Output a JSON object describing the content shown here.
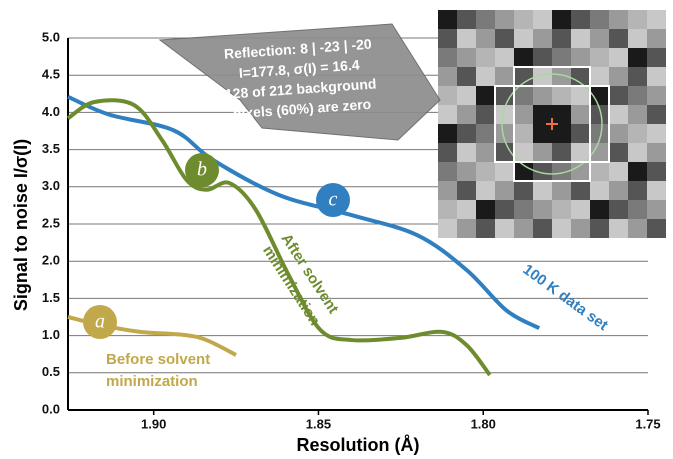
{
  "chart_data": {
    "type": "line",
    "x_label": "Resolution (Å)",
    "y_label": "Signal to noise I/σ(I)",
    "xlim": [
      1.926,
      1.75
    ],
    "xticks": [
      {
        "value": 1.9,
        "label": "1.90"
      },
      {
        "value": 1.85,
        "label": "1.85"
      },
      {
        "value": 1.8,
        "label": "1.80"
      },
      {
        "value": 1.75,
        "label": "1.75"
      }
    ],
    "ylim": [
      0,
      5
    ],
    "yticks": [
      {
        "value": 0,
        "label": "0.0"
      },
      {
        "value": 0.5,
        "label": "0.5"
      },
      {
        "value": 1,
        "label": "1.0"
      },
      {
        "value": 1.5,
        "label": "1.5"
      },
      {
        "value": 2,
        "label": "2.0"
      },
      {
        "value": 2.5,
        "label": "2.5"
      },
      {
        "value": 3,
        "label": "3.0"
      },
      {
        "value": 3.5,
        "label": "3.5"
      },
      {
        "value": 4,
        "label": "4.0"
      },
      {
        "value": 4.5,
        "label": "4.5"
      },
      {
        "value": 5,
        "label": "5.0"
      }
    ],
    "grid": true,
    "series": [
      {
        "marker": "c",
        "label": [
          "100 K data set"
        ],
        "color": "#2f7fc1",
        "x": [
          1.926,
          1.9135,
          1.894,
          1.882,
          1.862,
          1.84,
          1.82,
          1.805,
          1.793,
          1.783
        ],
        "values": [
          4.21,
          3.97,
          3.76,
          3.36,
          2.89,
          2.62,
          2.35,
          1.88,
          1.34,
          1.1
        ]
      },
      {
        "marker": "b",
        "label": [
          "After solvent",
          "minimization"
        ],
        "color": "#6e8c2e",
        "x": [
          1.926,
          1.918,
          1.906,
          1.8975,
          1.89,
          1.884,
          1.877,
          1.869,
          1.859,
          1.8495,
          1.84,
          1.825,
          1.8125,
          1.805,
          1.798
        ],
        "values": [
          3.92,
          4.14,
          4.1,
          3.63,
          3.09,
          2.96,
          3.05,
          2.69,
          1.81,
          1.08,
          0.94,
          0.97,
          1.05,
          0.87,
          0.47
        ]
      },
      {
        "marker": "a",
        "label": [
          "Before solvent",
          "minimization"
        ],
        "color": "#c1a84a",
        "x": [
          1.926,
          1.916,
          1.904,
          1.891,
          1.884,
          1.875
        ],
        "values": [
          1.25,
          1.14,
          1.05,
          1.01,
          0.94,
          0.74
        ]
      }
    ],
    "callout": [
      "Reflection: 8 | -23 | -20",
      "I=177.8, σ(I) = 16.4",
      "128 of 212 background",
      "pixels (60%) are zero"
    ]
  }
}
